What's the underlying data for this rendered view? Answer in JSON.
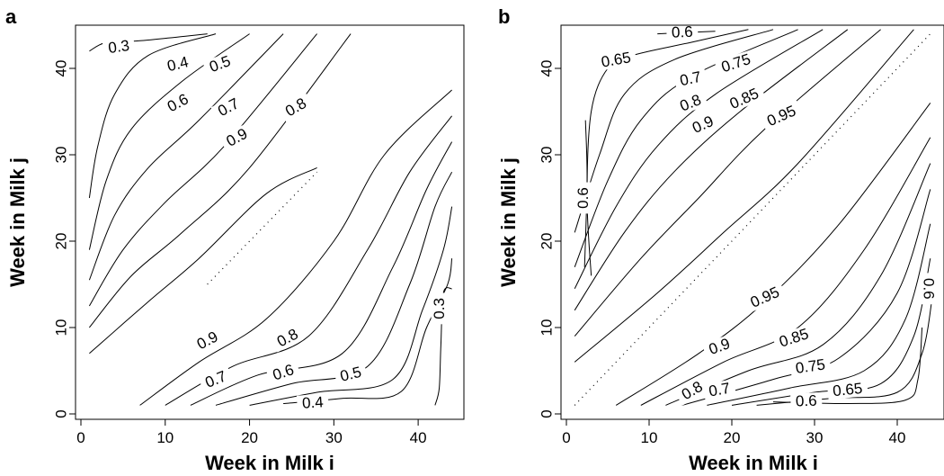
{
  "chart_data": [
    {
      "type": "contour",
      "panel_label": "a",
      "xlabel": "Week in Milk i",
      "ylabel": "Week in Milk j",
      "xlim": [
        0,
        45
      ],
      "ylim": [
        0,
        45
      ],
      "xticks": [
        0,
        10,
        20,
        30,
        40
      ],
      "yticks": [
        0,
        10,
        20,
        30,
        40
      ],
      "contour_levels": [
        "0.3",
        "0.4",
        "0.5",
        "0.6",
        "0.7",
        "0.8",
        "0.9"
      ],
      "labels": [
        "0.3",
        "0.4",
        "0.5",
        "0.6",
        "0.7",
        "0.8",
        "0.9",
        "0.9",
        "0.8",
        "0.7",
        "0.6",
        "0.5",
        "0.4",
        "0.3"
      ],
      "contours": [
        {
          "level": "0.3",
          "points": [
            [
              1,
              42
            ],
            [
              3,
              43
            ],
            [
              7,
              43.2
            ],
            [
              15,
              44
            ]
          ]
        },
        {
          "level": "0.4",
          "points": [
            [
              1,
              25
            ],
            [
              2,
              31
            ],
            [
              4,
              37
            ],
            [
              8,
              41.5
            ],
            [
              16,
              44
            ]
          ]
        },
        {
          "level": "0.5",
          "points": [
            [
              1,
              19
            ],
            [
              3,
              27
            ],
            [
              6,
              33
            ],
            [
              12,
              38.5
            ],
            [
              20,
              44
            ]
          ]
        },
        {
          "level": "0.6",
          "points": [
            [
              1,
              15.5
            ],
            [
              4,
              23
            ],
            [
              8,
              28.5
            ],
            [
              14,
              34
            ],
            [
              24,
              44
            ]
          ]
        },
        {
          "level": "0.7",
          "points": [
            [
              1,
              12.5
            ],
            [
              5,
              19
            ],
            [
              10,
              24.5
            ],
            [
              17,
              31
            ],
            [
              28,
              44
            ]
          ]
        },
        {
          "level": "0.8",
          "points": [
            [
              1,
              10
            ],
            [
              6,
              16
            ],
            [
              12,
              21
            ],
            [
              20,
              28.5
            ],
            [
              32,
              44
            ]
          ]
        },
        {
          "level": "0.9",
          "points": [
            [
              1,
              7
            ],
            [
              8,
              13
            ],
            [
              14,
              18
            ],
            [
              22,
              25.5
            ],
            [
              28,
              28.5
            ]
          ]
        },
        {
          "level": "0.9",
          "points": [
            [
              7,
              1
            ],
            [
              14,
              6
            ],
            [
              22,
              11
            ],
            [
              30,
              20
            ],
            [
              36,
              30
            ],
            [
              44,
              37.5
            ]
          ]
        },
        {
          "level": "0.8",
          "points": [
            [
              10,
              1
            ],
            [
              18,
              5.5
            ],
            [
              27,
              9
            ],
            [
              34,
              19
            ],
            [
              39,
              28
            ],
            [
              44,
              34.5
            ]
          ]
        },
        {
          "level": "0.7",
          "points": [
            [
              13,
              1
            ],
            [
              21,
              4.5
            ],
            [
              31,
              7
            ],
            [
              37,
              17
            ],
            [
              41,
              26
            ],
            [
              44,
              31.5
            ]
          ]
        },
        {
          "level": "0.6",
          "points": [
            [
              16,
              1
            ],
            [
              25,
              3.5
            ],
            [
              34,
              5.5
            ],
            [
              39,
              15
            ],
            [
              42,
              24
            ],
            [
              44,
              28
            ]
          ]
        },
        {
          "level": "0.5",
          "points": [
            [
              20,
              1
            ],
            [
              28,
              2.5
            ],
            [
              37,
              4
            ],
            [
              40.5,
              12
            ],
            [
              43,
              19
            ],
            [
              44,
              24
            ]
          ]
        },
        {
          "level": "0.4",
          "points": [
            [
              24,
              1.2
            ],
            [
              31,
              1.8
            ],
            [
              38,
              2.6
            ],
            [
              41,
              10
            ],
            [
              43.5,
              15
            ],
            [
              44,
              18
            ]
          ]
        },
        {
          "level": "0.3",
          "points": [
            [
              42,
              1
            ],
            [
              42.5,
              3
            ],
            [
              42.7,
              8
            ],
            [
              43,
              14
            ],
            [
              44,
              14.5
            ]
          ]
        }
      ],
      "diagonal_dots": [
        15,
        28
      ]
    },
    {
      "type": "contour",
      "panel_label": "b",
      "xlabel": "Week in Milk i",
      "ylabel": "Week in Milk j",
      "xlim": [
        0,
        45
      ],
      "ylim": [
        0,
        45
      ],
      "xticks": [
        0,
        10,
        20,
        30,
        40
      ],
      "yticks": [
        0,
        10,
        20,
        30,
        40
      ],
      "contour_levels": [
        "0.6",
        "0.65",
        "0.7",
        "0.75",
        "0.8",
        "0.85",
        "0.9",
        "0.95"
      ],
      "labels": [
        "0.6",
        "0.65",
        "0.7",
        "0.75",
        "0.8",
        "0.85",
        "0.9",
        "0.95",
        "0.6",
        "0.95",
        "0.9",
        "0.85",
        "0.8",
        "0.75",
        "0.7",
        "0.65",
        "0.6",
        "0.6"
      ],
      "contours": [
        {
          "level": "0.6",
          "points": [
            [
              11,
              44
            ],
            [
              18,
              44.3
            ]
          ]
        },
        {
          "level": "0.65",
          "points": [
            [
              3,
              16
            ],
            [
              2.5,
              25
            ],
            [
              3,
              35
            ],
            [
              5,
              40
            ],
            [
              8,
              41.5
            ],
            [
              15,
              43
            ],
            [
              22,
              44.5
            ]
          ]
        },
        {
          "level": "0.7",
          "points": [
            [
              1,
              21
            ],
            [
              4,
              30
            ],
            [
              7,
              37
            ],
            [
              13,
              41
            ],
            [
              25,
              44.5
            ]
          ]
        },
        {
          "level": "0.75",
          "points": [
            [
              1,
              17
            ],
            [
              5,
              27
            ],
            [
              9,
              34
            ],
            [
              15,
              39
            ],
            [
              28,
              44.5
            ]
          ]
        },
        {
          "level": "0.8",
          "points": [
            [
              1,
              14.5
            ],
            [
              6,
              24
            ],
            [
              11,
              31
            ],
            [
              18,
              37
            ],
            [
              31,
              44.5
            ]
          ]
        },
        {
          "level": "0.85",
          "points": [
            [
              1,
              12
            ],
            [
              7,
              21
            ],
            [
              13,
              28
            ],
            [
              21,
              35
            ],
            [
              34,
              44.5
            ]
          ]
        },
        {
          "level": "0.9",
          "points": [
            [
              1,
              9
            ],
            [
              9,
              18
            ],
            [
              16,
              25
            ],
            [
              24,
              33
            ],
            [
              38,
              44.5
            ]
          ]
        },
        {
          "level": "0.95",
          "points": [
            [
              1,
              6
            ],
            [
              11,
              14
            ],
            [
              19,
              21
            ],
            [
              28,
              29
            ],
            [
              42,
              44.5
            ]
          ]
        },
        {
          "level": "0.6",
          "points": [
            [
              2.3,
              34
            ],
            [
              2.5,
              27
            ],
            [
              2.2,
              17
            ]
          ]
        },
        {
          "level": "0.95",
          "points": [
            [
              6,
              1
            ],
            [
              16,
              7
            ],
            [
              24,
              13
            ],
            [
              33,
              22
            ],
            [
              44,
              36
            ]
          ]
        },
        {
          "level": "0.9",
          "points": [
            [
              9,
              1
            ],
            [
              19,
              6
            ],
            [
              28,
              10
            ],
            [
              36,
              19
            ],
            [
              44,
              32
            ]
          ]
        },
        {
          "level": "0.85",
          "points": [
            [
              12,
              1
            ],
            [
              22,
              5
            ],
            [
              31,
              8
            ],
            [
              38,
              16
            ],
            [
              44,
              29
            ]
          ]
        },
        {
          "level": "0.8",
          "points": [
            [
              14,
              1
            ],
            [
              25,
              4
            ],
            [
              33,
              6.5
            ],
            [
              40,
              14
            ],
            [
              44,
              26
            ]
          ]
        },
        {
          "level": "0.75",
          "points": [
            [
              17,
              1
            ],
            [
              27,
              3
            ],
            [
              36,
              5
            ],
            [
              41,
              11
            ],
            [
              44,
              22
            ]
          ]
        },
        {
          "level": "0.7",
          "points": [
            [
              20,
              1
            ],
            [
              30,
              2.5
            ],
            [
              38,
              3.5
            ],
            [
              42,
              9
            ],
            [
              44,
              18
            ]
          ]
        },
        {
          "level": "0.65",
          "points": [
            [
              23,
              1
            ],
            [
              32,
              1.8
            ],
            [
              40,
              2.5
            ],
            [
              43,
              7
            ],
            [
              44.3,
              14
            ]
          ]
        },
        {
          "level": "0.6",
          "points": [
            [
              25,
              1.4
            ],
            [
              34,
              1.2
            ],
            [
              41,
              1.6
            ],
            [
              42.5,
              4
            ],
            [
              43,
              10
            ]
          ]
        }
      ],
      "diagonal_dots": [
        1,
        44
      ]
    }
  ]
}
